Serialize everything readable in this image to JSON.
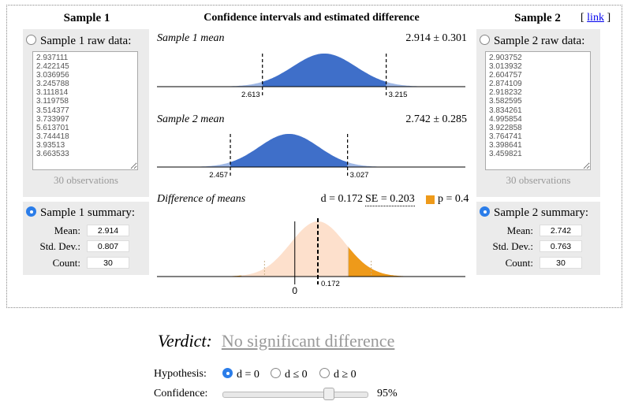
{
  "sample1": {
    "title": "Sample 1",
    "raw_label": "Sample 1 raw data:",
    "raw_data": "2.937111\n2.422145\n3.036956\n3.245788\n3.111814\n3.119758\n3.514377\n3.733997\n5.613701\n3.744418\n3.93513\n3.663533",
    "observations": "30 observations",
    "summary_label": "Sample 1 summary:",
    "mean_label": "Mean:",
    "mean": "2.914",
    "sd_label": "Std. Dev.:",
    "sd": "0.807",
    "count_label": "Count:",
    "count": "30"
  },
  "sample2": {
    "title": "Sample 2",
    "raw_label": "Sample 2 raw data:",
    "raw_data": "2.903752\n3.013932\n2.604757\n2.874109\n2.918232\n3.582595\n3.834261\n4.995854\n3.922858\n3.764741\n3.398641\n3.459821",
    "observations": "30 observations",
    "summary_label": "Sample 2 summary:",
    "mean_label": "Mean:",
    "mean": "2.742",
    "sd_label": "Std. Dev.:",
    "sd": "0.763",
    "count_label": "Count:",
    "count": "30"
  },
  "center": {
    "title": "Confidence intervals and estimated difference",
    "link": "link",
    "bracket_open": "[",
    "bracket_close": "]"
  },
  "charts": {
    "s1_label": "Sample 1 mean",
    "s1_value": "2.914 ± 0.301",
    "s2_label": "Sample 2 mean",
    "s2_value": "2.742 ± 0.285",
    "diff_label": "Difference of means",
    "d_text": "d = 0.172",
    "se_text": "SE = 0.203",
    "p_text": "p = 0.4"
  },
  "chart_data": [
    {
      "type": "area",
      "name": "Sample 1 mean",
      "mean": 2.914,
      "ci": [
        2.613,
        3.215
      ],
      "tick_labels": [
        "2.613",
        "3.215"
      ]
    },
    {
      "type": "area",
      "name": "Sample 2 mean",
      "mean": 2.742,
      "ci": [
        2.457,
        3.027
      ],
      "tick_labels": [
        "2.457",
        "3.027"
      ]
    },
    {
      "type": "area",
      "name": "Difference of means",
      "mean": 0.172,
      "se": 0.203,
      "p": 0.4,
      "tick_labels": [
        "0",
        "0.172"
      ]
    }
  ],
  "colors": {
    "blue": "#3f6fc9",
    "orange": "#ee9a1a",
    "peach": "#fde0cc",
    "radio": "#2b7de9"
  },
  "verdict": {
    "label": "Verdict:",
    "text": "No significant difference"
  },
  "hypothesis": {
    "label": "Hypothesis:",
    "options": [
      "d = 0",
      "d ≤ 0",
      "d ≥ 0"
    ],
    "selected": 0
  },
  "confidence": {
    "label": "Confidence:",
    "value_text": "95%",
    "value": 0.95
  }
}
